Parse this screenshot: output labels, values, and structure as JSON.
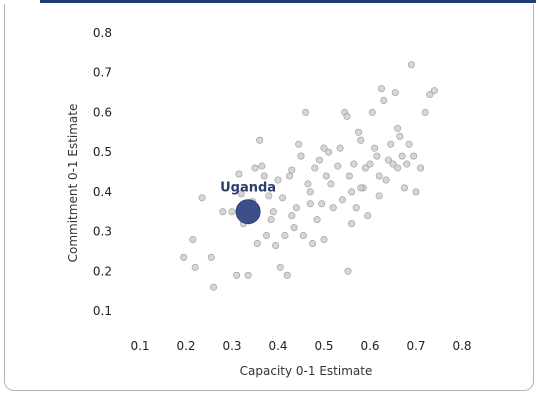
{
  "chart_data": {
    "type": "scatter",
    "xlabel": "Capacity 0-1 Estimate",
    "ylabel": "Commitment 0-1 Estimate",
    "xlim": [
      0.05,
      0.85
    ],
    "ylim": [
      0.05,
      0.85
    ],
    "x_ticks": [
      "0.1",
      "0.2",
      "0.3",
      "0.4",
      "0.5",
      "0.6",
      "0.7",
      "0.8"
    ],
    "y_ticks": [
      "0.1",
      "0.2",
      "0.3",
      "0.4",
      "0.5",
      "0.6",
      "0.7",
      "0.8"
    ],
    "grid": false,
    "colors": {
      "points": "#cfcfcf",
      "point_stroke": "#9a9a9a",
      "highlight": "#3b4f8a"
    },
    "highlight": {
      "label": "Uganda",
      "x": 0.335,
      "y": 0.35
    },
    "points": [
      [
        0.195,
        0.235
      ],
      [
        0.215,
        0.28
      ],
      [
        0.22,
        0.21
      ],
      [
        0.235,
        0.385
      ],
      [
        0.255,
        0.235
      ],
      [
        0.26,
        0.16
      ],
      [
        0.28,
        0.35
      ],
      [
        0.3,
        0.35
      ],
      [
        0.31,
        0.19
      ],
      [
        0.315,
        0.445
      ],
      [
        0.32,
        0.395
      ],
      [
        0.325,
        0.32
      ],
      [
        0.335,
        0.19
      ],
      [
        0.345,
        0.375
      ],
      [
        0.35,
        0.46
      ],
      [
        0.355,
        0.27
      ],
      [
        0.36,
        0.53
      ],
      [
        0.365,
        0.465
      ],
      [
        0.37,
        0.44
      ],
      [
        0.375,
        0.29
      ],
      [
        0.38,
        0.39
      ],
      [
        0.385,
        0.33
      ],
      [
        0.39,
        0.35
      ],
      [
        0.395,
        0.265
      ],
      [
        0.4,
        0.43
      ],
      [
        0.405,
        0.21
      ],
      [
        0.41,
        0.385
      ],
      [
        0.415,
        0.29
      ],
      [
        0.42,
        0.19
      ],
      [
        0.425,
        0.44
      ],
      [
        0.43,
        0.455
      ],
      [
        0.435,
        0.31
      ],
      [
        0.44,
        0.36
      ],
      [
        0.445,
        0.52
      ],
      [
        0.45,
        0.49
      ],
      [
        0.455,
        0.29
      ],
      [
        0.46,
        0.6
      ],
      [
        0.465,
        0.42
      ],
      [
        0.47,
        0.4
      ],
      [
        0.475,
        0.27
      ],
      [
        0.48,
        0.46
      ],
      [
        0.485,
        0.33
      ],
      [
        0.49,
        0.48
      ],
      [
        0.495,
        0.37
      ],
      [
        0.5,
        0.28
      ],
      [
        0.505,
        0.44
      ],
      [
        0.51,
        0.5
      ],
      [
        0.515,
        0.42
      ],
      [
        0.52,
        0.36
      ],
      [
        0.53,
        0.465
      ],
      [
        0.535,
        0.51
      ],
      [
        0.54,
        0.38
      ],
      [
        0.545,
        0.6
      ],
      [
        0.55,
        0.59
      ],
      [
        0.552,
        0.2
      ],
      [
        0.555,
        0.44
      ],
      [
        0.56,
        0.4
      ],
      [
        0.565,
        0.47
      ],
      [
        0.57,
        0.36
      ],
      [
        0.575,
        0.55
      ],
      [
        0.58,
        0.53
      ],
      [
        0.585,
        0.41
      ],
      [
        0.59,
        0.46
      ],
      [
        0.595,
        0.34
      ],
      [
        0.6,
        0.47
      ],
      [
        0.605,
        0.6
      ],
      [
        0.61,
        0.51
      ],
      [
        0.615,
        0.49
      ],
      [
        0.62,
        0.44
      ],
      [
        0.625,
        0.66
      ],
      [
        0.63,
        0.63
      ],
      [
        0.635,
        0.43
      ],
      [
        0.64,
        0.48
      ],
      [
        0.645,
        0.52
      ],
      [
        0.65,
        0.47
      ],
      [
        0.655,
        0.65
      ],
      [
        0.66,
        0.56
      ],
      [
        0.665,
        0.54
      ],
      [
        0.67,
        0.49
      ],
      [
        0.675,
        0.41
      ],
      [
        0.68,
        0.47
      ],
      [
        0.685,
        0.52
      ],
      [
        0.69,
        0.72
      ],
      [
        0.695,
        0.49
      ],
      [
        0.7,
        0.4
      ],
      [
        0.71,
        0.46
      ],
      [
        0.72,
        0.6
      ],
      [
        0.73,
        0.645
      ],
      [
        0.74,
        0.655
      ],
      [
        0.66,
        0.46
      ],
      [
        0.62,
        0.39
      ],
      [
        0.58,
        0.41
      ],
      [
        0.56,
        0.32
      ],
      [
        0.5,
        0.51
      ],
      [
        0.47,
        0.37
      ],
      [
        0.43,
        0.34
      ]
    ]
  }
}
